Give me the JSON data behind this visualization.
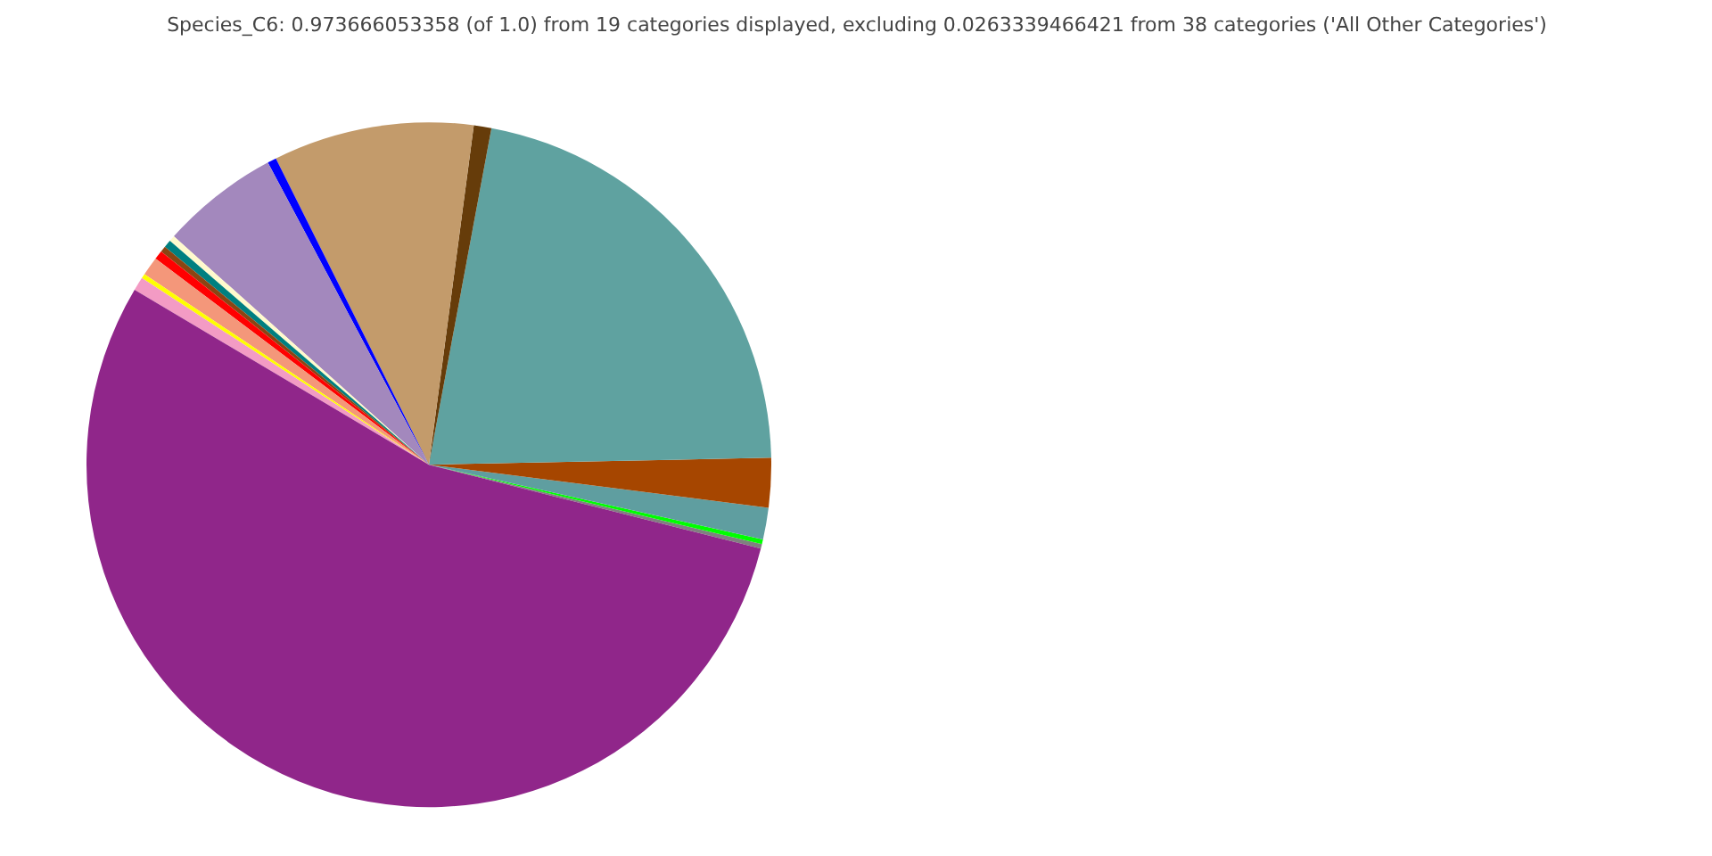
{
  "chart_data": {
    "type": "pie",
    "title": "Species_C6: 0.973666053358 (of 1.0) from 19 categories displayed, excluding 0.0263339466421 from 38 categories ('All Other Categories')",
    "categories": [
      null,
      null,
      null,
      null,
      null,
      null,
      null,
      null,
      null,
      null,
      null,
      null,
      null,
      null,
      null,
      null,
      null
    ],
    "values": [
      0.22,
      0.22,
      1.5,
      2.33,
      21.75,
      0.83,
      9.47,
      0.42,
      5.58,
      0.28,
      0.36,
      0.28,
      0.42,
      0.89,
      0.22,
      0.64,
      54.59
    ],
    "colors": [
      "#808080",
      "#00ff00",
      "#5f9ea0",
      "#a64600",
      "#5fa2a0",
      "#663c0a",
      "#c39b6b",
      "#0000ff",
      "#a388bd",
      "#fffacd",
      "#008080",
      "#8b4513",
      "#ff0000",
      "#f4977a",
      "#ffff00",
      "#f39bc4",
      "#90268a"
    ]
  }
}
